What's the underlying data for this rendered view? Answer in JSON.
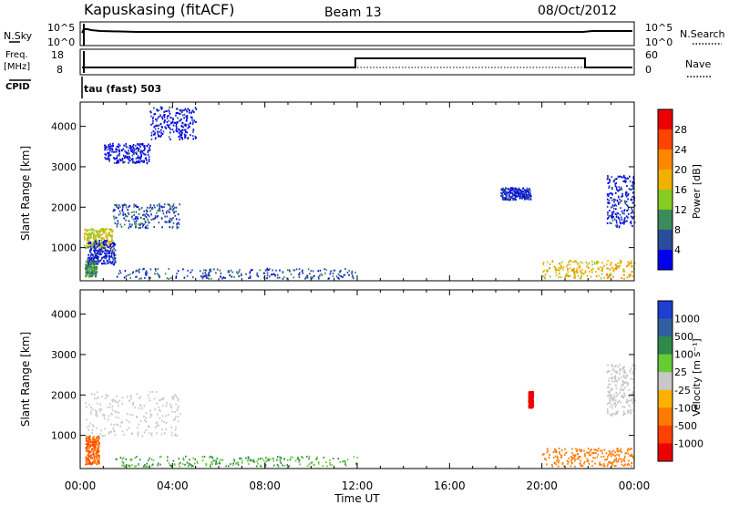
{
  "header": {
    "station": "Kapuskasing (fitACF)",
    "beam": "Beam 13",
    "date": "08/Oct/2012"
  },
  "top_panels": {
    "nsky": {
      "label": "N.Sky",
      "ticks": [
        "10^5",
        "10^0"
      ],
      "right_label": "N.Search",
      "right_ticks": [
        "10^5",
        "10^0"
      ]
    },
    "freq": {
      "label_line1": "Freq.",
      "label_line2": "[MHz]",
      "ticks": [
        "18",
        "8"
      ],
      "right_label": "Nave",
      "right_ticks": [
        "60",
        "0"
      ]
    },
    "cpid": {
      "label": "CPID",
      "value": "tau (fast) 503"
    }
  },
  "x_axis": {
    "label": "Time UT",
    "ticks": [
      "00:00",
      "04:00",
      "08:00",
      "12:00",
      "16:00",
      "20:00",
      "00:00"
    ]
  },
  "panels": [
    {
      "y_label": "Slant Range [km]",
      "colorbar_label": "Power [dB]",
      "colorbar_ticks": [
        "28",
        "24",
        "20",
        "16",
        "12",
        "8",
        "4"
      ],
      "colorbar_colors": [
        "#ee0000",
        "#ff4400",
        "#ff8800",
        "#f2b000",
        "#88cc22",
        "#3a8c5c",
        "#2a4c9c",
        "#0000ee"
      ]
    },
    {
      "y_label": "Slant Range [km]",
      "colorbar_label": "Velocity [m s⁻¹]",
      "colorbar_ticks": [
        "1000",
        "500",
        "100",
        "25",
        "-25",
        "-100",
        "-500",
        "-1000"
      ],
      "colorbar_colors": [
        "#1f3fd0",
        "#2e5fa0",
        "#2f8a4a",
        "#66cc33",
        "#c8c8c8",
        "#ffb000",
        "#ff7a00",
        "#ff4000",
        "#ee0000"
      ]
    }
  ],
  "chart_data": [
    {
      "type": "heatmap",
      "title": "Power [dB]",
      "xlabel": "Time UT",
      "ylabel": "Slant Range [km]",
      "xlim": [
        0,
        24
      ],
      "ylim": [
        180,
        4600
      ],
      "yticks": [
        1000,
        2000,
        3000,
        4000
      ],
      "color_scale": [
        4,
        8,
        12,
        16,
        20,
        24,
        28
      ],
      "regions": [
        {
          "t": [
            0.15,
            1.4
          ],
          "r": [
            1000,
            1500
          ],
          "level": 18
        },
        {
          "t": [
            1.4,
            4.3
          ],
          "r": [
            1500,
            2100
          ],
          "level": 8
        },
        {
          "t": [
            0.2,
            0.7
          ],
          "r": [
            300,
            700
          ],
          "level": 12
        },
        {
          "t": [
            0.3,
            1.5
          ],
          "r": [
            600,
            1200
          ],
          "level": 6
        },
        {
          "t": [
            1.0,
            3.0
          ],
          "r": [
            3100,
            3600
          ],
          "level": 4
        },
        {
          "t": [
            3.0,
            5.0
          ],
          "r": [
            3700,
            4500
          ],
          "level": 4
        },
        {
          "t": [
            1.5,
            12.0
          ],
          "r": [
            250,
            500
          ],
          "level": 8
        },
        {
          "t": [
            20.0,
            24.0
          ],
          "r": [
            250,
            700
          ],
          "level": 20
        },
        {
          "t": [
            22.8,
            24.0
          ],
          "r": [
            1500,
            2800
          ],
          "level": 6
        },
        {
          "t": [
            18.2,
            19.5
          ],
          "r": [
            2200,
            2500
          ],
          "level": 6
        }
      ]
    },
    {
      "type": "heatmap",
      "title": "Velocity [m s-1]",
      "xlabel": "Time UT",
      "ylabel": "Slant Range [km]",
      "xlim": [
        0,
        24
      ],
      "ylim": [
        180,
        4600
      ],
      "yticks": [
        1000,
        2000,
        3000,
        4000
      ],
      "color_scale": [
        -1000,
        -500,
        -100,
        -25,
        25,
        100,
        500,
        1000
      ],
      "regions": [
        {
          "t": [
            0.2,
            4.3
          ],
          "r": [
            1000,
            2100
          ],
          "velocity": 0
        },
        {
          "t": [
            0.2,
            0.8
          ],
          "r": [
            300,
            1000
          ],
          "velocity": -300
        },
        {
          "t": [
            1.5,
            12.0
          ],
          "r": [
            250,
            500
          ],
          "velocity": 60
        },
        {
          "t": [
            20.0,
            24.0
          ],
          "r": [
            250,
            700
          ],
          "velocity": -150
        },
        {
          "t": [
            19.4,
            19.6
          ],
          "r": [
            1700,
            2100
          ],
          "velocity": -800
        },
        {
          "t": [
            22.8,
            24.0
          ],
          "r": [
            1500,
            2800
          ],
          "velocity": 0
        }
      ]
    }
  ]
}
